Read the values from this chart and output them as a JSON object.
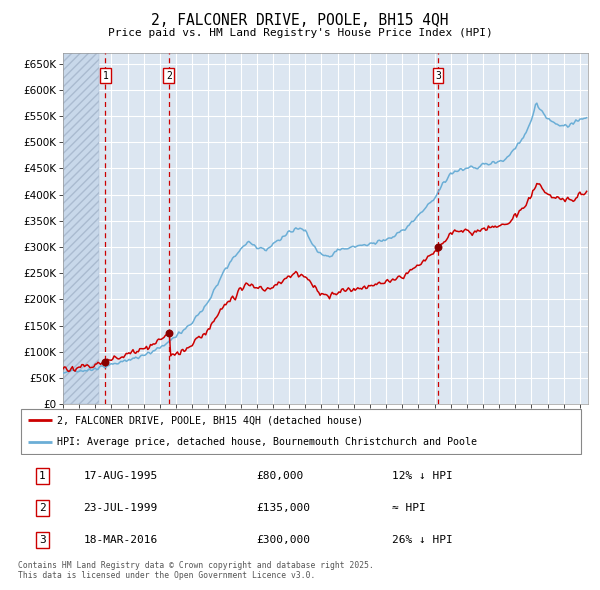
{
  "title": "2, FALCONER DRIVE, POOLE, BH15 4QH",
  "subtitle": "Price paid vs. HM Land Registry's House Price Index (HPI)",
  "ylim": [
    0,
    670000
  ],
  "yticks": [
    0,
    50000,
    100000,
    150000,
    200000,
    250000,
    300000,
    350000,
    400000,
    450000,
    500000,
    550000,
    600000,
    650000
  ],
  "xlim_start": 1993.0,
  "xlim_end": 2025.5,
  "plot_bg_color": "#dce6f1",
  "sale_dates": [
    1995.625,
    1999.55,
    2016.21
  ],
  "sale_prices": [
    80000,
    135000,
    300000
  ],
  "sale_labels": [
    "1",
    "2",
    "3"
  ],
  "legend_line1": "2, FALCONER DRIVE, POOLE, BH15 4QH (detached house)",
  "legend_line2": "HPI: Average price, detached house, Bournemouth Christchurch and Poole",
  "table_entries": [
    {
      "num": "1",
      "date": "17-AUG-1995",
      "price": "£80,000",
      "note": "12% ↓ HPI"
    },
    {
      "num": "2",
      "date": "23-JUL-1999",
      "price": "£135,000",
      "note": "≈ HPI"
    },
    {
      "num": "3",
      "date": "18-MAR-2016",
      "price": "£300,000",
      "note": "26% ↓ HPI"
    }
  ],
  "footnote": "Contains HM Land Registry data © Crown copyright and database right 2025.\nThis data is licensed under the Open Government Licence v3.0.",
  "red_line_color": "#cc0000",
  "blue_line_color": "#6baed6",
  "sale_dot_color": "#880000",
  "dashed_line_color": "#cc0000",
  "hpi_base_points": [
    [
      1993.0,
      62000
    ],
    [
      1994.0,
      64000
    ],
    [
      1995.0,
      68000
    ],
    [
      1996.0,
      75000
    ],
    [
      1997.0,
      84000
    ],
    [
      1998.0,
      95000
    ],
    [
      1999.0,
      108000
    ],
    [
      2000.0,
      130000
    ],
    [
      2001.0,
      155000
    ],
    [
      2002.0,
      195000
    ],
    [
      2003.0,
      255000
    ],
    [
      2004.0,
      300000
    ],
    [
      2004.5,
      310000
    ],
    [
      2005.0,
      300000
    ],
    [
      2005.5,
      295000
    ],
    [
      2006.0,
      305000
    ],
    [
      2007.0,
      330000
    ],
    [
      2007.5,
      340000
    ],
    [
      2008.0,
      330000
    ],
    [
      2008.5,
      305000
    ],
    [
      2009.0,
      285000
    ],
    [
      2009.5,
      280000
    ],
    [
      2010.0,
      295000
    ],
    [
      2011.0,
      300000
    ],
    [
      2012.0,
      305000
    ],
    [
      2013.0,
      315000
    ],
    [
      2014.0,
      330000
    ],
    [
      2015.0,
      360000
    ],
    [
      2016.0,
      395000
    ],
    [
      2016.5,
      420000
    ],
    [
      2017.0,
      440000
    ],
    [
      2017.5,
      445000
    ],
    [
      2018.0,
      450000
    ],
    [
      2018.5,
      452000
    ],
    [
      2019.0,
      455000
    ],
    [
      2019.5,
      460000
    ],
    [
      2020.0,
      462000
    ],
    [
      2020.5,
      470000
    ],
    [
      2021.0,
      490000
    ],
    [
      2021.5,
      510000
    ],
    [
      2022.0,
      540000
    ],
    [
      2022.3,
      575000
    ],
    [
      2022.7,
      555000
    ],
    [
      2023.0,
      545000
    ],
    [
      2023.5,
      535000
    ],
    [
      2024.0,
      530000
    ],
    [
      2024.5,
      535000
    ],
    [
      2025.0,
      545000
    ]
  ]
}
